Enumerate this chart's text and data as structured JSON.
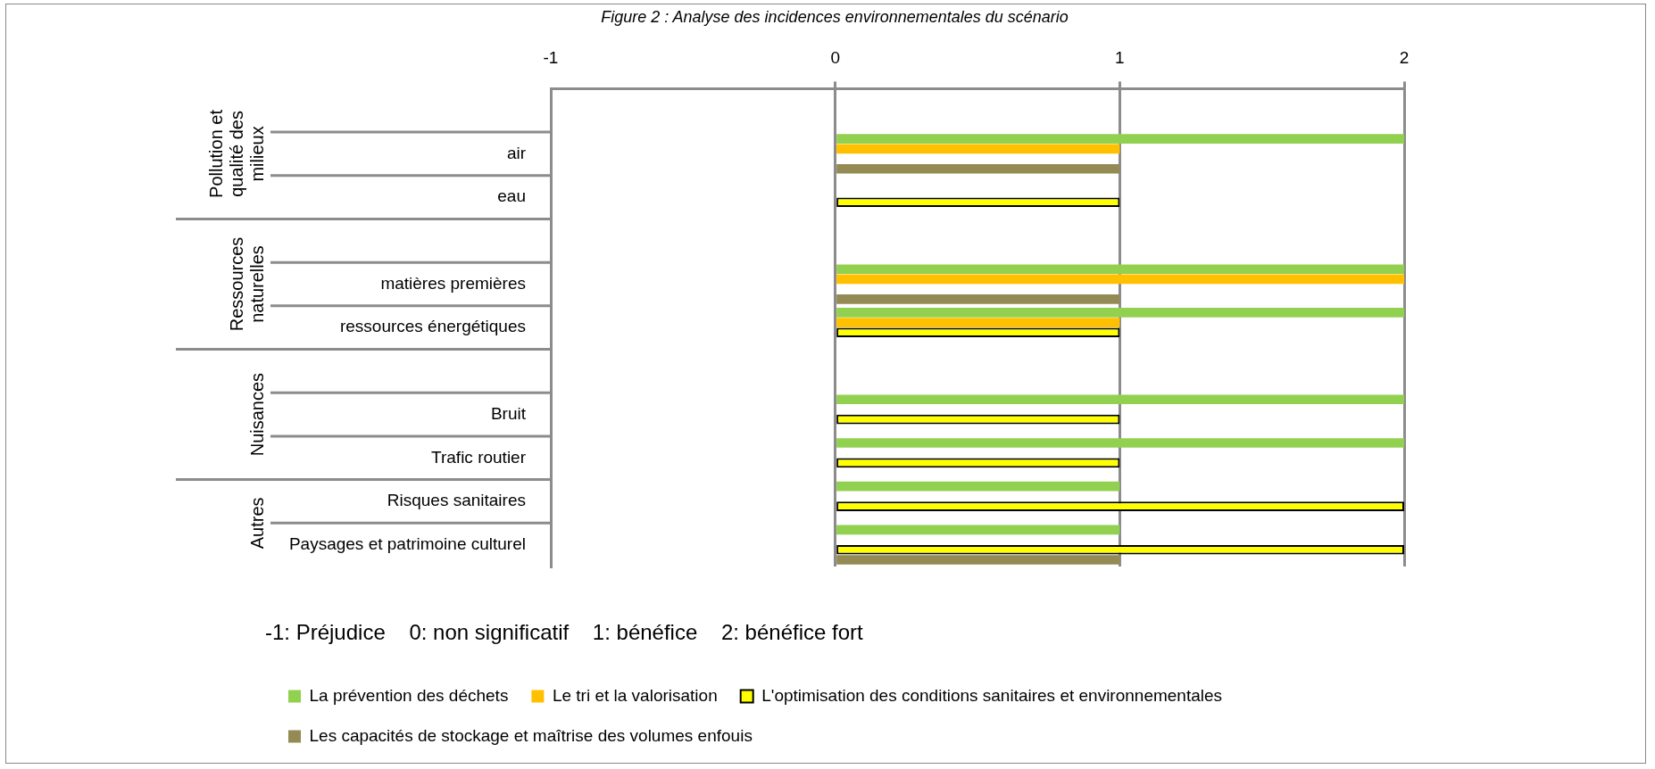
{
  "chart_data": {
    "type": "bar",
    "orientation": "horizontal",
    "title": "Figure 2 : Analyse des incidences environnementales du scénario",
    "categories": [
      null,
      "air",
      "eau",
      null,
      "matières premières",
      "ressources énergétiques",
      null,
      "Bruit",
      "Trafic routier",
      "Risques sanitaires",
      "Paysages et patrimoine culturel"
    ],
    "series": [
      {
        "name": "La prévention des déchets",
        "color": "#92d050",
        "values": [
          null,
          2,
          null,
          null,
          2,
          2,
          null,
          2,
          2,
          1,
          1
        ]
      },
      {
        "name": "Le tri et la valorisation",
        "color": "#ffc000",
        "values": [
          null,
          1,
          null,
          null,
          2,
          1,
          null,
          null,
          null,
          null,
          null
        ]
      },
      {
        "name": "L'optimisation des conditions sanitaires et environnementales",
        "color": "#ffff00",
        "values": [
          null,
          null,
          1,
          null,
          null,
          1,
          null,
          1,
          1,
          2,
          2
        ]
      },
      {
        "name": "Les capacités de stockage et maîtrise des volumes enfouis",
        "color": "#948a54",
        "values": [
          null,
          1,
          null,
          null,
          1,
          null,
          null,
          null,
          null,
          null,
          1
        ]
      }
    ],
    "xlim": [
      -1,
      2
    ],
    "xticks": [
      -1,
      0,
      1,
      2
    ],
    "grid": "x",
    "legend": "bottom",
    "annotations": [
      "-1: Préjudice    0: non significatif    1: bénéfice    2: bénéfice fort",
      "Pollution et qualité des milieux",
      "Ressources naturelles",
      "Nuisances",
      "Autres"
    ]
  }
}
